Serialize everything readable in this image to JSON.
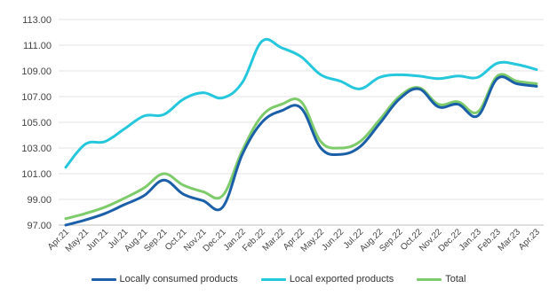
{
  "chart_data": {
    "type": "line",
    "title": "",
    "xlabel": "",
    "ylabel": "",
    "ylim": [
      97,
      113
    ],
    "yticks": [
      "97.00",
      "99.00",
      "101.00",
      "103.00",
      "105.00",
      "107.00",
      "109.00",
      "111.00",
      "113.00"
    ],
    "grid": "horizontal",
    "legend_position": "bottom",
    "categories": [
      "Apr.21",
      "May.21",
      "Jun.21",
      "Jul.21",
      "Aug.21",
      "Sep.21",
      "Oct.21",
      "Nov.21",
      "Dec.21",
      "Jan.22",
      "Feb.22",
      "Mar.22",
      "Apr.22",
      "May.22",
      "Jun.22",
      "Jul.22",
      "Aug.22",
      "Sep.22",
      "Oct.22",
      "Nov.22",
      "Dec.22",
      "Jan.23",
      "Feb.23",
      "Mar.23",
      "Apr.23"
    ],
    "series": [
      {
        "name": "Locally consumed products",
        "color": "#1a5fa8",
        "values": [
          97.0,
          97.4,
          97.9,
          98.6,
          99.3,
          100.5,
          99.4,
          98.9,
          98.4,
          102.5,
          105.0,
          105.9,
          106.1,
          103.0,
          102.5,
          103.1,
          104.9,
          106.8,
          107.6,
          106.2,
          106.4,
          105.5,
          108.4,
          108.0,
          107.8
        ]
      },
      {
        "name": "Local exported products",
        "color": "#25c7dc",
        "values": [
          101.5,
          103.3,
          103.5,
          104.5,
          105.5,
          105.6,
          106.8,
          107.3,
          106.9,
          108.1,
          111.3,
          110.8,
          110.1,
          108.7,
          108.2,
          107.6,
          108.5,
          108.7,
          108.6,
          108.4,
          108.6,
          108.5,
          109.6,
          109.5,
          109.1
        ]
      },
      {
        "name": "Total",
        "color": "#7dcb6a",
        "values": [
          97.5,
          97.9,
          98.4,
          99.1,
          99.9,
          101.0,
          100.1,
          99.6,
          99.3,
          102.8,
          105.5,
          106.4,
          106.6,
          103.5,
          103.0,
          103.5,
          105.2,
          107.0,
          107.7,
          106.4,
          106.6,
          105.8,
          108.6,
          108.2,
          108.0
        ]
      }
    ]
  }
}
